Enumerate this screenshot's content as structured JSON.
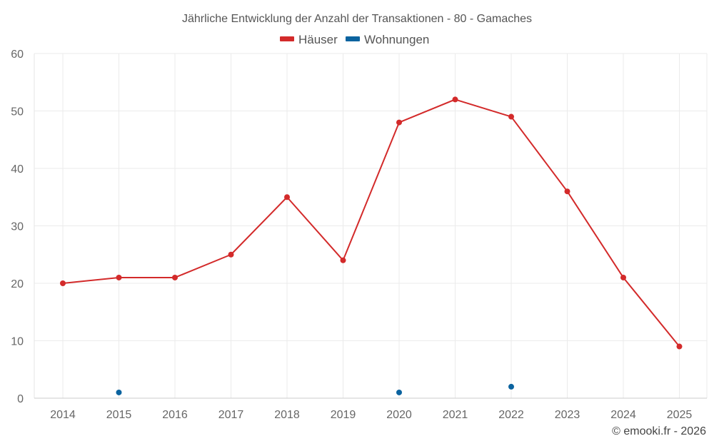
{
  "chart_data": {
    "type": "line",
    "title": "Jährliche Entwicklung der Anzahl der Transaktionen - 80 - Gamaches",
    "categories": [
      "2014",
      "2015",
      "2016",
      "2017",
      "2018",
      "2019",
      "2020",
      "2021",
      "2022",
      "2023",
      "2024",
      "2025"
    ],
    "series": [
      {
        "name": "Häuser",
        "color": "#d32a2a",
        "style": "line",
        "values": [
          20,
          21,
          21,
          25,
          35,
          24,
          48,
          52,
          49,
          36,
          21,
          9
        ]
      },
      {
        "name": "Wohnungen",
        "color": "#0b639f",
        "style": "points",
        "values": [
          null,
          1,
          null,
          null,
          null,
          null,
          1,
          null,
          2,
          null,
          null,
          null
        ]
      }
    ],
    "ylim": [
      0,
      60
    ],
    "yticks": [
      "0",
      "10",
      "20",
      "30",
      "40",
      "50",
      "60"
    ],
    "xlabel": "",
    "ylabel": "",
    "grid": true,
    "legend": "top-center"
  },
  "footer": {
    "copyright": "© emooki.fr - 2026"
  }
}
